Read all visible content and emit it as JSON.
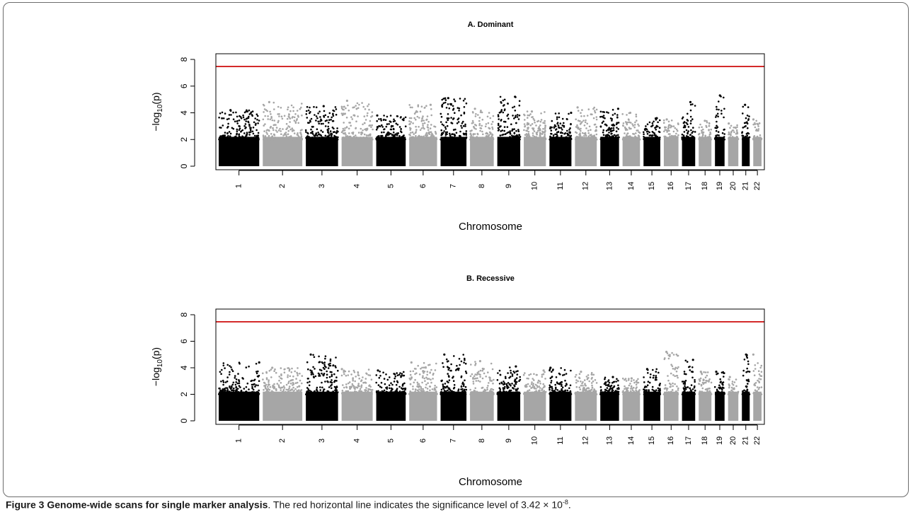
{
  "caption": {
    "label": "Figure 3",
    "title": "Genome-wide scans for single marker analysis",
    "text_before": ". The red horizontal line indicates the significance level of 3.42 × 10",
    "exponent": "-8",
    "text_after": "."
  },
  "colors": {
    "odd_chromosome": "#000000",
    "even_chromosome": "#a6a6a6",
    "threshold": "#d42a2a",
    "axis": "#000000"
  },
  "chart_data": [
    {
      "type": "scatter",
      "title": "A. Dominant",
      "xlabel": "Chromosome",
      "ylabel": "−log",
      "ylabel_sub": "10",
      "ylabel_tail": "(p)",
      "ylim": [
        0,
        8
      ],
      "y_ticks": [
        "0",
        "2",
        "4",
        "6",
        "8"
      ],
      "threshold_y": 7.47,
      "chromosomes": [
        "1",
        "2",
        "3",
        "4",
        "5",
        "6",
        "7",
        "8",
        "9",
        "10",
        "11",
        "12",
        "13",
        "14",
        "15",
        "16",
        "17",
        "18",
        "19",
        "20",
        "21",
        "22"
      ],
      "chromosome_peak_neglog10p": [
        4.2,
        4.8,
        4.5,
        4.9,
        3.8,
        4.6,
        5.1,
        4.3,
        5.2,
        4.1,
        4.0,
        4.4,
        4.3,
        4.0,
        3.6,
        3.5,
        4.8,
        3.4,
        5.3,
        3.2,
        4.6,
        3.5
      ],
      "grid": false
    },
    {
      "type": "scatter",
      "title": "B. Recessive",
      "xlabel": "Chromosome",
      "ylabel": "−log",
      "ylabel_sub": "10",
      "ylabel_tail": "(p)",
      "ylim": [
        0,
        8
      ],
      "y_ticks": [
        "0",
        "2",
        "4",
        "6",
        "8"
      ],
      "threshold_y": 7.47,
      "chromosomes": [
        "1",
        "2",
        "3",
        "4",
        "5",
        "6",
        "7",
        "8",
        "9",
        "10",
        "11",
        "12",
        "13",
        "14",
        "15",
        "16",
        "17",
        "18",
        "19",
        "20",
        "21",
        "22"
      ],
      "chromosome_peak_neglog10p": [
        4.4,
        4.0,
        5.0,
        3.9,
        3.8,
        4.4,
        5.0,
        4.5,
        4.1,
        3.8,
        4.0,
        3.7,
        3.3,
        3.2,
        3.9,
        5.2,
        4.6,
        3.7,
        3.7,
        3.3,
        5.0,
        5.0
      ],
      "grid": false
    }
  ]
}
